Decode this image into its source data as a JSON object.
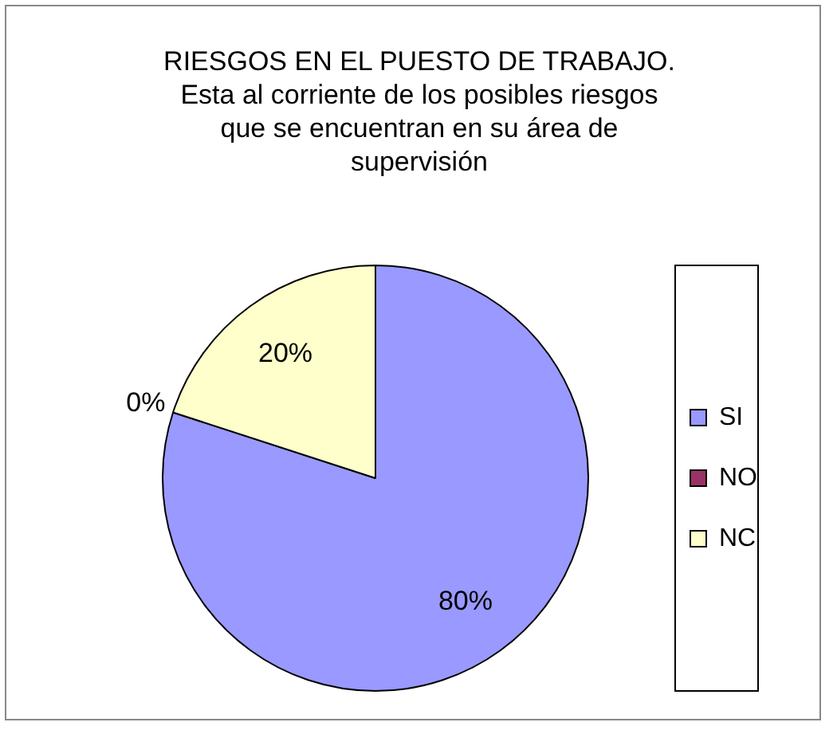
{
  "chart_data": {
    "type": "pie",
    "title": "RIESGOS EN EL PUESTO DE TRABAJO. Esta al corriente de los posibles riesgos que se encuentran en su área de supervisión",
    "categories": [
      "SI",
      "NO",
      "NC"
    ],
    "values": [
      80,
      0,
      20
    ],
    "colors": [
      "#9999ff",
      "#993366",
      "#ffffcc"
    ],
    "value_labels": [
      "80%",
      "0%",
      "20%"
    ],
    "legend": "right"
  }
}
